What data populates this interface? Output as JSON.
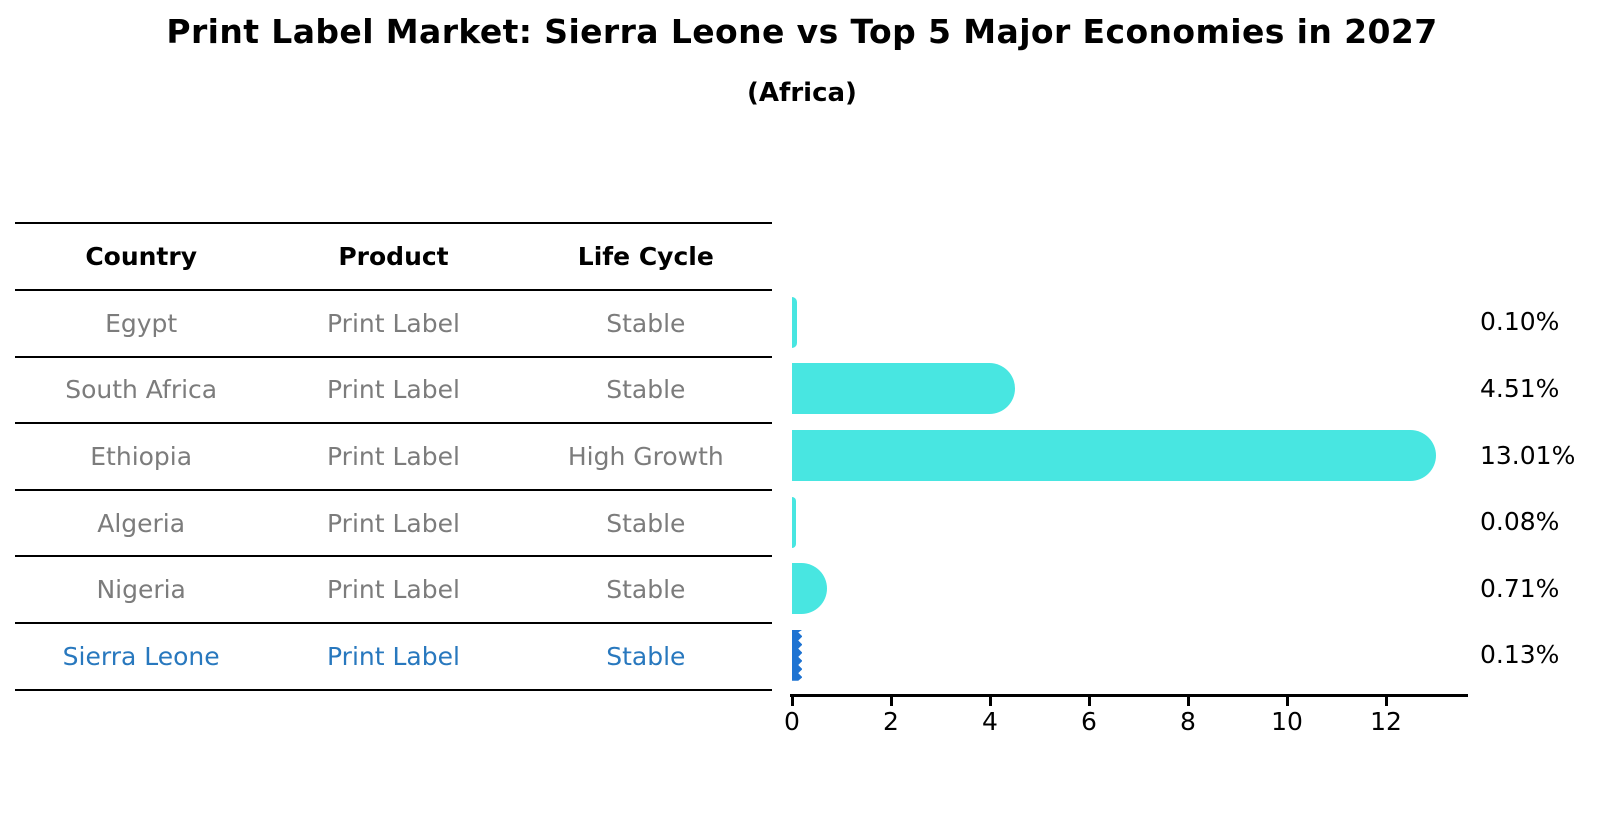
{
  "title": "Print Label Market: Sierra Leone vs Top 5 Major Economies in 2027",
  "subtitle": "(Africa)",
  "table": {
    "headers": [
      "Country",
      "Product",
      "Life Cycle"
    ],
    "rows": [
      [
        "Egypt",
        "Print Label",
        "Stable"
      ],
      [
        "South Africa",
        "Print Label",
        "Stable"
      ],
      [
        "Ethiopia",
        "Print Label",
        "High Growth"
      ],
      [
        "Algeria",
        "Print Label",
        "Stable"
      ],
      [
        "Nigeria",
        "Print Label",
        "Stable"
      ],
      [
        "Sierra Leone",
        "Print Label",
        "Stable"
      ]
    ],
    "highlight_row": "Sierra Leone"
  },
  "chart_data": {
    "type": "bar",
    "orientation": "horizontal",
    "title": "Print Label Market: Sierra Leone vs Top 5 Major Economies in 2027",
    "subtitle": "(Africa)",
    "categories": [
      "Egypt",
      "South Africa",
      "Ethiopia",
      "Algeria",
      "Nigeria",
      "Sierra Leone"
    ],
    "values": [
      0.1,
      4.51,
      13.01,
      0.08,
      0.71,
      0.13
    ],
    "value_labels": [
      "0.10%",
      "4.51%",
      "13.01%",
      "0.08%",
      "0.71%",
      "0.13%"
    ],
    "xlabel": "",
    "ylabel": "",
    "xlim": [
      0,
      13.66
    ],
    "xticks": [
      0,
      2,
      4,
      6,
      8,
      10,
      12
    ],
    "grid": false,
    "legend": false,
    "highlight_index": 5
  },
  "colors": {
    "bar_default": "#48e6e1",
    "bar_highlight": "#1e73d2",
    "highlight_text": "#2878be",
    "table_text": "#7c7c7c",
    "axis": "#000000",
    "background": "#ffffff"
  }
}
